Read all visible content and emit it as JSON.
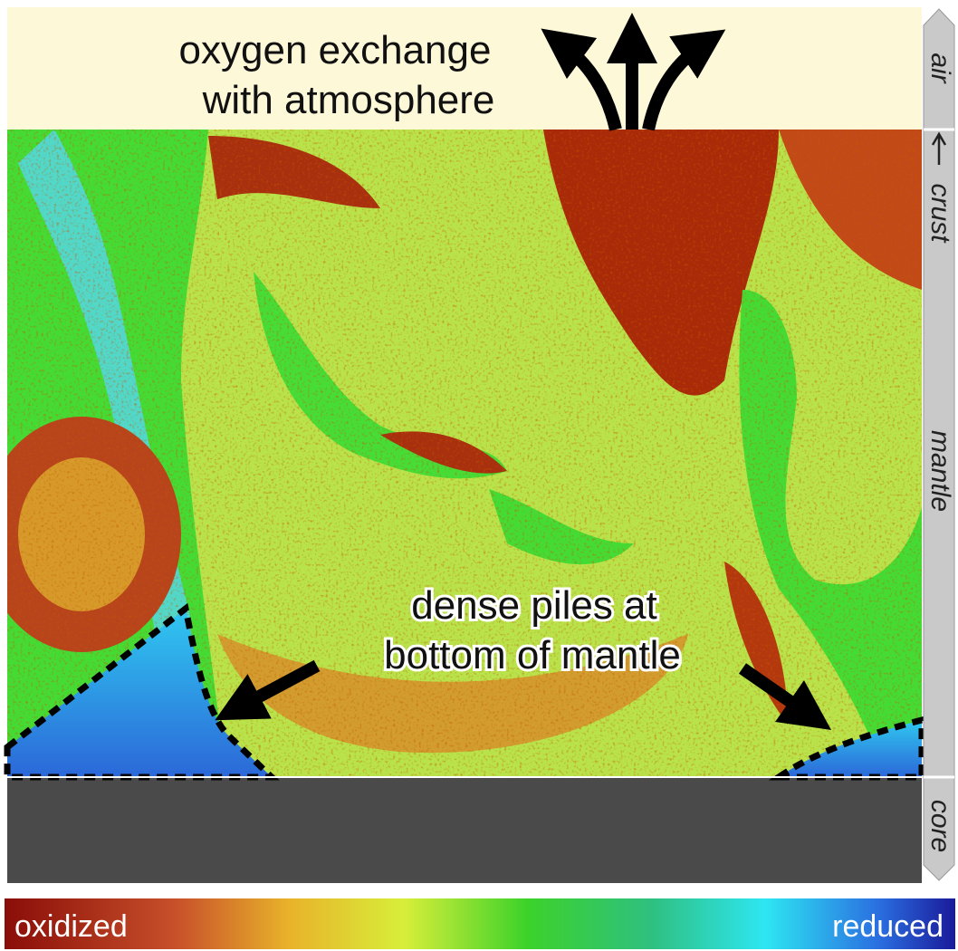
{
  "header": {
    "lines": [
      "oxygen exchange",
      "with atmosphere"
    ]
  },
  "layers": [
    "air",
    "crust",
    "mantle",
    "core"
  ],
  "piles": {
    "lines": [
      "dense piles at",
      "bottom of mantle"
    ]
  },
  "colorbar": {
    "left": "oxidized",
    "right": "reduced"
  }
}
